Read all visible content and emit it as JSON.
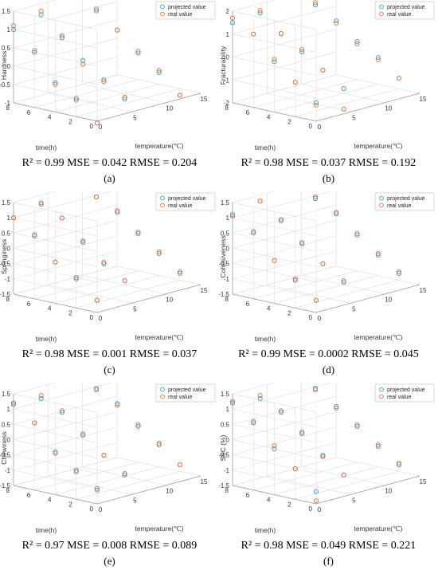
{
  "legend": {
    "projected": "projected value",
    "real": "real value"
  },
  "colors": {
    "projected": "#1fa6c9",
    "real": "#f06b2c",
    "grid": "#e1e1e1",
    "axis": "#9a9a9a"
  },
  "panels": [
    {
      "id": "a",
      "metrics": "R² = 0.99 MSE = 0.042 RMSE = 0.204",
      "letter": "(a)",
      "chart_data": {
        "type": "scatter3d",
        "xlabel": "temperature(℃)",
        "ylabel": "time(h)",
        "zlabel": "Hardness",
        "xlim": [
          0,
          15
        ],
        "ylim": [
          0,
          8
        ],
        "zlim": [
          -1,
          1.5
        ],
        "xticks": [
          "0",
          "5",
          "10",
          "15"
        ],
        "yticks": [
          "0",
          "2",
          "4",
          "6",
          "8"
        ],
        "zticks": [
          "-1",
          "-0.5",
          "0",
          "0.5",
          "1",
          "1.5"
        ],
        "series": [
          {
            "name": "projected value",
            "x": [
              0,
              0,
              0,
              0,
              0,
              4,
              4,
              4,
              4,
              4,
              12,
              12,
              12,
              12,
              12
            ],
            "y": [
              0,
              2,
              4,
              6,
              8,
              0,
              2,
              4,
              6,
              8,
              0,
              2,
              4,
              6,
              8
            ],
            "z": [
              -1.05,
              -0.55,
              -0.2,
              0.5,
              1.0,
              -0.6,
              -0.2,
              0.2,
              0.7,
              1.2,
              -0.9,
              -0.4,
              0.0,
              0.5,
              0.9
            ]
          },
          {
            "name": "real value",
            "x": [
              0,
              0,
              0,
              0,
              0,
              4,
              4,
              4,
              4,
              4,
              12,
              12,
              12,
              12,
              12
            ],
            "y": [
              0,
              2,
              4,
              6,
              8,
              0,
              2,
              4,
              6,
              8,
              0,
              2,
              4,
              6,
              8
            ],
            "z": [
              -1.05,
              -0.5,
              -0.25,
              0.55,
              1.1,
              -0.55,
              -0.25,
              0.1,
              0.75,
              1.3,
              -0.9,
              -0.35,
              0.05,
              0.5,
              0.95
            ]
          }
        ]
      }
    },
    {
      "id": "b",
      "metrics": "R² = 0.98 MSE = 0.037 RMSE = 0.192",
      "letter": "(b)",
      "chart_data": {
        "type": "scatter3d",
        "xlabel": "temperature(℃)",
        "ylabel": "time(h)",
        "zlabel": "Fracturability",
        "xlim": [
          0,
          15
        ],
        "ylim": [
          0,
          8
        ],
        "zlim": [
          -2,
          2
        ],
        "xticks": [
          "0",
          "5",
          "10",
          "15"
        ],
        "yticks": [
          "0",
          "2",
          "4",
          "6",
          "8"
        ],
        "zticks": [
          "-2",
          "-1",
          "0",
          "1",
          "2"
        ],
        "series": [
          {
            "name": "projected value",
            "x": [
              0,
              0,
              0,
              0,
              0,
              4,
              4,
              4,
              4,
              4,
              12,
              12,
              12,
              12,
              12
            ],
            "y": [
              0,
              2,
              4,
              6,
              8,
              0,
              2,
              4,
              6,
              8,
              0,
              2,
              4,
              6,
              8
            ],
            "z": [
              -1.2,
              -0.5,
              0.2,
              1.2,
              1.5,
              -0.9,
              -0.3,
              0.3,
              0.9,
              1.6,
              -1.1,
              -0.4,
              0.1,
              0.8,
              1.3
            ]
          },
          {
            "name": "real value",
            "x": [
              0,
              0,
              0,
              0,
              0,
              4,
              4,
              4,
              4,
              4,
              12,
              12,
              12,
              12,
              12
            ],
            "y": [
              0,
              2,
              4,
              6,
              8,
              0,
              2,
              4,
              6,
              8,
              0,
              2,
              4,
              6,
              8
            ],
            "z": [
              -1.3,
              -0.5,
              0.3,
              1.2,
              1.7,
              -1.8,
              -0.3,
              0.4,
              0.9,
              1.7,
              -1.1,
              -0.5,
              0.0,
              0.7,
              1.4
            ]
          }
        ]
      }
    },
    {
      "id": "c",
      "metrics": "R² = 0.98 MSE = 0.001 RMSE = 0.037",
      "letter": "(c)",
      "chart_data": {
        "type": "scatter3d",
        "xlabel": "temperature(℃)",
        "ylabel": "time(h)",
        "zlabel": "Springiness",
        "xlim": [
          0,
          15
        ],
        "ylim": [
          0,
          8
        ],
        "zlim": [
          -1.5,
          1.5
        ],
        "xticks": [
          "0",
          "5",
          "10",
          "15"
        ],
        "yticks": [
          "0",
          "2",
          "4",
          "6",
          "8"
        ],
        "zticks": [
          "-1.5",
          "-1",
          "-0.5",
          "0",
          "0.5",
          "1",
          "1.5"
        ],
        "series": [
          {
            "name": "projected value",
            "x": [
              0,
              0,
              0,
              0,
              0,
              4,
              4,
              4,
              4,
              4,
              12,
              12,
              12,
              12,
              12
            ],
            "y": [
              0,
              2,
              4,
              6,
              8,
              0,
              2,
              4,
              6,
              8,
              0,
              2,
              4,
              6,
              8
            ],
            "z": [
              -1.1,
              -0.55,
              -0.15,
              0.6,
              1.0,
              -0.7,
              -0.3,
              0.3,
              0.9,
              1.2,
              -0.9,
              -0.45,
              0.1,
              0.6,
              0.95
            ]
          },
          {
            "name": "real value",
            "x": [
              0,
              0,
              0,
              0,
              0,
              4,
              4,
              4,
              4,
              4,
              12,
              12,
              12,
              12,
              12
            ],
            "y": [
              0,
              2,
              4,
              6,
              8,
              0,
              2,
              4,
              6,
              8,
              0,
              2,
              4,
              6,
              8
            ],
            "z": [
              -1.1,
              -0.5,
              -0.15,
              0.55,
              1.0,
              -0.7,
              -0.25,
              0.25,
              0.9,
              1.25,
              -0.95,
              -0.4,
              0.05,
              0.65,
              0.95
            ]
          }
        ]
      }
    },
    {
      "id": "d",
      "metrics": "R² = 0.99 MSE = 0.0002 RMSE = 0.045",
      "letter": "(d)",
      "chart_data": {
        "type": "scatter3d",
        "xlabel": "temperature(℃)",
        "ylabel": "time(h)",
        "zlabel": "Cohesiveness",
        "xlim": [
          0,
          15
        ],
        "ylim": [
          0,
          8
        ],
        "zlim": [
          -1.5,
          1.5
        ],
        "xticks": [
          "0",
          "5",
          "10",
          "15"
        ],
        "yticks": [
          "0",
          "2",
          "4",
          "6",
          "8"
        ],
        "zticks": [
          "-1.5",
          "-1",
          "-0.5",
          "0",
          "0.5",
          "1",
          "1.5"
        ],
        "series": [
          {
            "name": "projected value",
            "x": [
              0,
              0,
              0,
              0,
              0,
              4,
              4,
              4,
              4,
              4,
              12,
              12,
              12,
              12,
              12
            ],
            "y": [
              0,
              2,
              4,
              6,
              8,
              0,
              2,
              4,
              6,
              8,
              0,
              2,
              4,
              6,
              8
            ],
            "z": [
              -1.1,
              -0.6,
              -0.1,
              0.7,
              1.1,
              -0.75,
              -0.3,
              0.2,
              0.85,
              1.3,
              -0.9,
              -0.5,
              0.05,
              0.55,
              0.9
            ]
          },
          {
            "name": "real value",
            "x": [
              0,
              0,
              0,
              0,
              0,
              4,
              4,
              4,
              4,
              4,
              12,
              12,
              12,
              12,
              12
            ],
            "y": [
              0,
              2,
              4,
              6,
              8,
              0,
              2,
              4,
              6,
              8,
              0,
              2,
              4,
              6,
              8
            ],
            "z": [
              -1.1,
              -0.55,
              -0.1,
              0.65,
              1.05,
              -0.7,
              -0.3,
              0.25,
              0.8,
              1.3,
              -0.95,
              -0.45,
              0.0,
              0.6,
              0.95
            ]
          }
        ]
      }
    },
    {
      "id": "e",
      "metrics": "R² = 0.97 MSE = 0.008 RMSE = 0.089",
      "letter": "(e)",
      "chart_data": {
        "type": "scatter3d",
        "xlabel": "temperature(℃)",
        "ylabel": "time(h)",
        "zlabel": "Chewiness",
        "xlim": [
          0,
          15
        ],
        "ylim": [
          0,
          8
        ],
        "zlim": [
          -1.5,
          1.5
        ],
        "xticks": [
          "0",
          "5",
          "10",
          "15"
        ],
        "yticks": [
          "0",
          "2",
          "4",
          "6",
          "8"
        ],
        "zticks": [
          "-1.5",
          "-1",
          "-0.5",
          "0",
          "0.5",
          "1",
          "1.5"
        ],
        "series": [
          {
            "name": "projected value",
            "x": [
              0,
              0,
              0,
              0,
              0,
              4,
              4,
              4,
              4,
              4,
              12,
              12,
              12,
              12,
              12
            ],
            "y": [
              0,
              2,
              4,
              6,
              8,
              0,
              2,
              4,
              6,
              8,
              0,
              2,
              4,
              6,
              8
            ],
            "z": [
              -1.0,
              -0.6,
              -0.1,
              0.7,
              1.2,
              -0.8,
              -0.3,
              0.2,
              0.8,
              1.1,
              -0.95,
              -0.45,
              0.05,
              0.6,
              0.9
            ]
          },
          {
            "name": "real value",
            "x": [
              0,
              0,
              0,
              0,
              0,
              4,
              4,
              4,
              4,
              4,
              12,
              12,
              12,
              12,
              12
            ],
            "y": [
              0,
              2,
              4,
              6,
              8,
              0,
              2,
              4,
              6,
              8,
              0,
              2,
              4,
              6,
              8
            ],
            "z": [
              -1.05,
              -0.55,
              -0.15,
              0.7,
              1.15,
              -0.75,
              -0.3,
              0.25,
              0.85,
              1.2,
              -0.95,
              -0.4,
              0.0,
              0.55,
              0.95
            ]
          }
        ]
      }
    },
    {
      "id": "f",
      "metrics": "R² = 0.98 MSE = 0.049 RMSE = 0.221",
      "letter": "(f)",
      "chart_data": {
        "type": "scatter3d",
        "xlabel": "temperature(℃)",
        "ylabel": "time(h)",
        "zlabel": "SSC (%)",
        "xlim": [
          0,
          15
        ],
        "ylim": [
          0,
          8
        ],
        "zlim": [
          -1.5,
          1.5
        ],
        "xticks": [
          "0",
          "5",
          "10",
          "15"
        ],
        "yticks": [
          "0",
          "2",
          "4",
          "6",
          "8"
        ],
        "zticks": [
          "-1.5",
          "-1",
          "-0.5",
          "0",
          "0.5",
          "1",
          "1.5"
        ],
        "series": [
          {
            "name": "projected value",
            "x": [
              0,
              0,
              0,
              0,
              0,
              4,
              4,
              4,
              4,
              4,
              12,
              12,
              12,
              12,
              12
            ],
            "y": [
              0,
              2,
              4,
              6,
              8,
              0,
              2,
              4,
              6,
              8,
              0,
              2,
              4,
              6,
              8
            ],
            "z": [
              -1.1,
              -0.5,
              0.0,
              0.7,
              1.2,
              -0.8,
              -0.3,
              0.3,
              0.8,
              1.1,
              -0.95,
              -0.5,
              0.0,
              0.5,
              0.95
            ]
          },
          {
            "name": "real value",
            "x": [
              0,
              0,
              0,
              0,
              0,
              4,
              4,
              4,
              4,
              4,
              12,
              12,
              12,
              12,
              12
            ],
            "y": [
              0,
              2,
              4,
              6,
              8,
              0,
              2,
              4,
              6,
              8,
              0,
              2,
              4,
              6,
              8
            ],
            "z": [
              -1.4,
              -0.5,
              0.1,
              0.75,
              1.25,
              -0.8,
              -0.35,
              0.25,
              0.85,
              1.2,
              -0.9,
              -0.45,
              0.05,
              0.45,
              0.9
            ]
          }
        ]
      }
    }
  ]
}
